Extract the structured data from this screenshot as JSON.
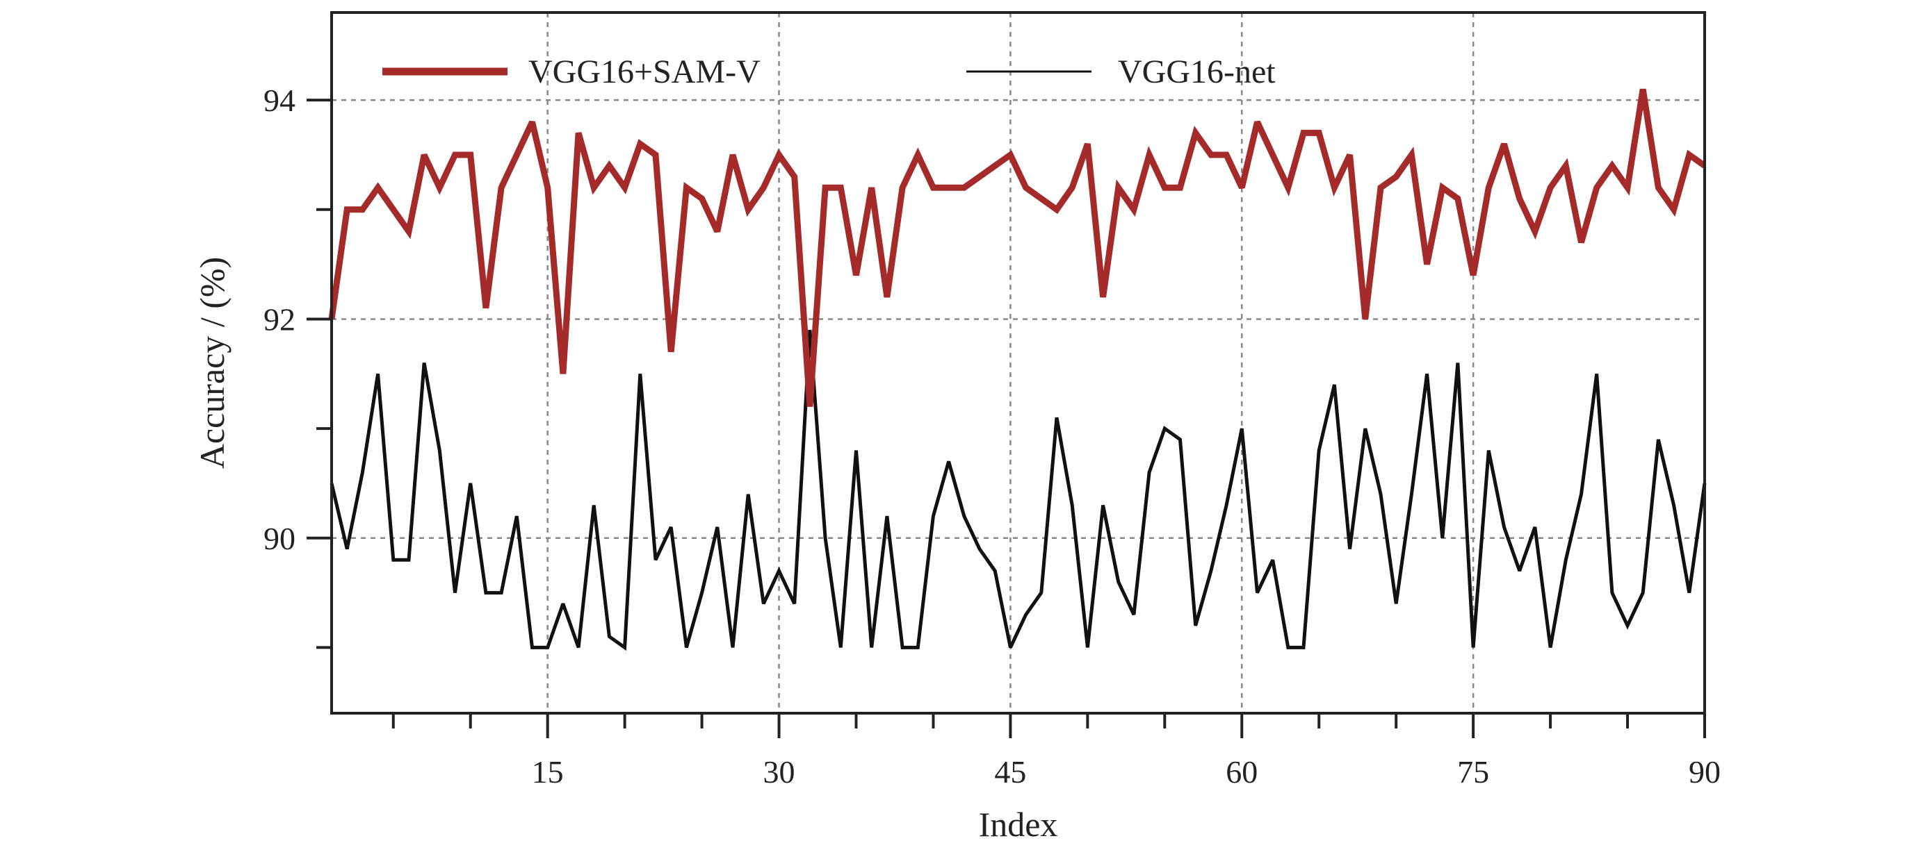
{
  "chart_data": {
    "type": "line",
    "xlabel": "Index",
    "ylabel": "Accuracy / (%)",
    "xlim": [
      1,
      90
    ],
    "ylim": [
      88.4,
      94.8
    ],
    "x_ticks": [
      15,
      30,
      45,
      60,
      75,
      90
    ],
    "y_ticks": [
      90,
      92,
      94
    ],
    "y_minor_ticks": [
      89,
      91,
      93
    ],
    "grid": true,
    "legend_position": "top",
    "series": [
      {
        "name": "VGG16+SAM-V",
        "color": "#a52a2a",
        "x": [
          1,
          2,
          3,
          4,
          5,
          6,
          7,
          8,
          9,
          10,
          11,
          12,
          13,
          14,
          15,
          16,
          17,
          18,
          19,
          20,
          21,
          22,
          23,
          24,
          25,
          26,
          27,
          28,
          29,
          30,
          31,
          32,
          33,
          34,
          35,
          36,
          37,
          38,
          39,
          40,
          41,
          42,
          43,
          44,
          45,
          46,
          47,
          48,
          49,
          50,
          51,
          52,
          53,
          54,
          55,
          56,
          57,
          58,
          59,
          60,
          61,
          62,
          63,
          64,
          65,
          66,
          67,
          68,
          69,
          70,
          71,
          72,
          73,
          74,
          75,
          76,
          77,
          78,
          79,
          80,
          81,
          82,
          83,
          84,
          85,
          86,
          87,
          88,
          89,
          90
        ],
        "values": [
          92.0,
          93.0,
          93.0,
          93.2,
          93.0,
          92.8,
          93.5,
          93.2,
          93.5,
          93.5,
          92.1,
          93.2,
          93.5,
          93.8,
          93.2,
          91.5,
          93.7,
          93.2,
          93.4,
          93.2,
          93.6,
          93.5,
          91.7,
          93.2,
          93.1,
          92.8,
          93.5,
          93.0,
          93.2,
          93.5,
          93.3,
          91.2,
          93.2,
          93.2,
          92.4,
          93.2,
          92.2,
          93.2,
          93.5,
          93.2,
          93.2,
          93.2,
          93.3,
          93.4,
          93.5,
          93.2,
          93.1,
          93.0,
          93.2,
          93.6,
          92.2,
          93.2,
          93.0,
          93.5,
          93.2,
          93.2,
          93.7,
          93.5,
          93.5,
          93.2,
          93.8,
          93.5,
          93.2,
          93.7,
          93.7,
          93.2,
          93.5,
          92.0,
          93.2,
          93.3,
          93.5,
          92.5,
          93.2,
          93.1,
          92.4,
          93.2,
          93.6,
          93.1,
          92.8,
          93.2,
          93.4,
          92.7,
          93.2,
          93.4,
          93.2,
          94.1,
          93.2,
          93.0,
          93.5,
          93.4
        ]
      },
      {
        "name": "VGG16-net",
        "color": "#111111",
        "x": [
          1,
          2,
          3,
          4,
          5,
          6,
          7,
          8,
          9,
          10,
          11,
          12,
          13,
          14,
          15,
          16,
          17,
          18,
          19,
          20,
          21,
          22,
          23,
          24,
          25,
          26,
          27,
          28,
          29,
          30,
          31,
          32,
          33,
          34,
          35,
          36,
          37,
          38,
          39,
          40,
          41,
          42,
          43,
          44,
          45,
          46,
          47,
          48,
          49,
          50,
          51,
          52,
          53,
          54,
          55,
          56,
          57,
          58,
          59,
          60,
          61,
          62,
          63,
          64,
          65,
          66,
          67,
          68,
          69,
          70,
          71,
          72,
          73,
          74,
          75,
          76,
          77,
          78,
          79,
          80,
          81,
          82,
          83,
          84,
          85,
          86,
          87,
          88,
          89,
          90
        ],
        "values": [
          90.5,
          89.9,
          90.6,
          91.5,
          89.8,
          89.8,
          91.6,
          90.8,
          89.5,
          90.5,
          89.5,
          89.5,
          90.2,
          89.0,
          89.0,
          89.4,
          89.0,
          90.3,
          89.1,
          89.0,
          91.5,
          89.8,
          90.1,
          89.0,
          89.5,
          90.1,
          89.0,
          90.4,
          89.4,
          89.7,
          89.4,
          91.9,
          90.0,
          89.0,
          90.8,
          89.0,
          90.2,
          89.0,
          89.0,
          90.2,
          90.7,
          90.2,
          89.9,
          89.7,
          89.0,
          89.3,
          89.5,
          91.1,
          90.3,
          89.0,
          90.3,
          89.6,
          89.3,
          90.6,
          91.0,
          90.9,
          89.2,
          89.7,
          90.3,
          91.0,
          89.5,
          89.8,
          89.0,
          89.0,
          90.8,
          91.4,
          89.9,
          91.0,
          90.4,
          89.4,
          90.4,
          91.5,
          90.0,
          91.6,
          89.0,
          90.8,
          90.1,
          89.7,
          90.1,
          89.0,
          89.8,
          90.4,
          91.5,
          89.5,
          89.2,
          89.5,
          90.9,
          90.3,
          89.5,
          90.5
        ]
      }
    ]
  }
}
